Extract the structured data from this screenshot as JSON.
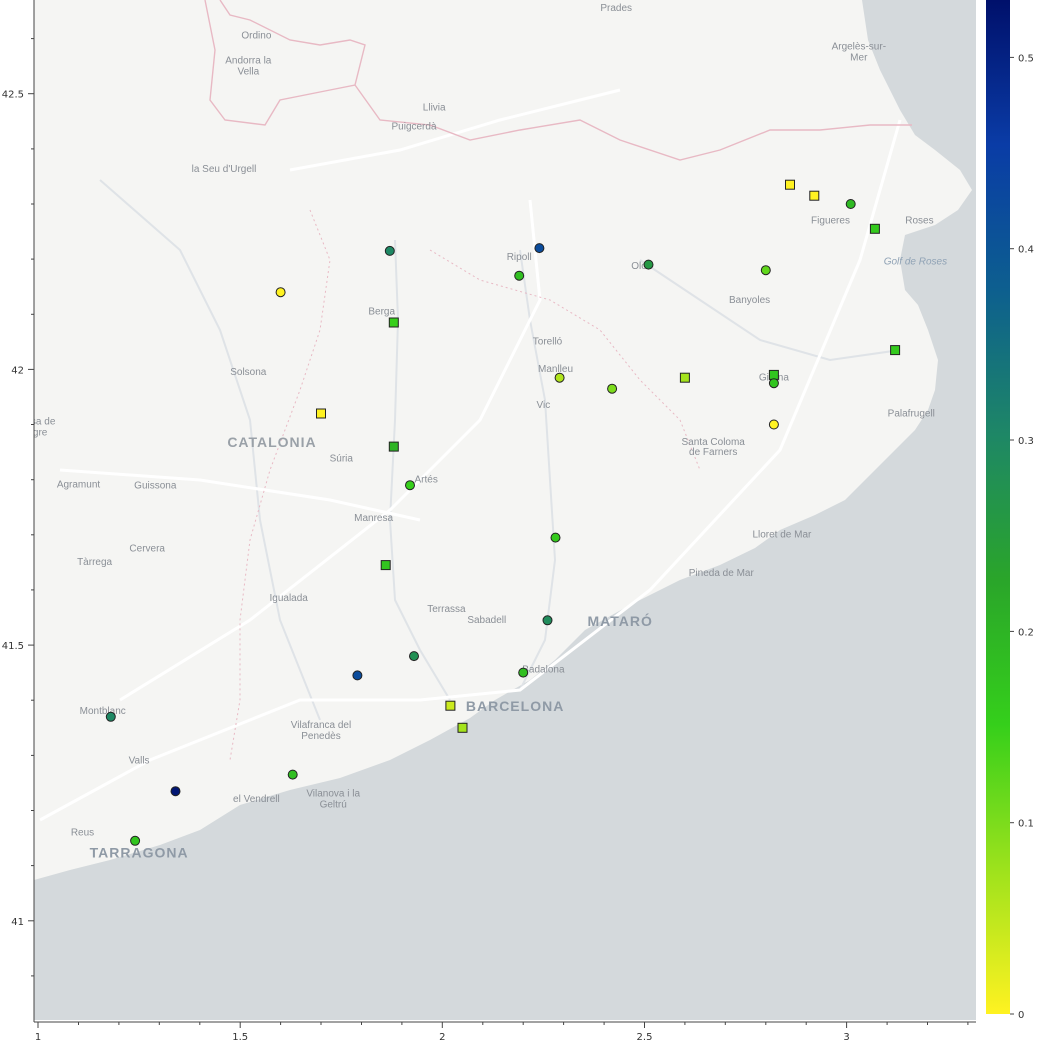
{
  "map": {
    "region_label": "CATALONIA",
    "colors": {
      "land": "#f5f5f3",
      "sea": "#d4d9dc",
      "road": "#ffffff",
      "border": "#e8b9c4",
      "river": "#dfe3e7"
    },
    "places": [
      {
        "text": "Prades",
        "lon": 2.43,
        "lat": 42.65
      },
      {
        "text": "Ordino",
        "lon": 1.54,
        "lat": 42.6
      },
      {
        "text": "Andorra la",
        "lon": 1.52,
        "lat": 42.555
      },
      {
        "text": "Vella",
        "lon": 1.52,
        "lat": 42.535
      },
      {
        "text": "Argelès-sur-",
        "lon": 3.03,
        "lat": 42.58
      },
      {
        "text": "Mer",
        "lon": 3.03,
        "lat": 42.56
      },
      {
        "text": "Llivia",
        "lon": 1.98,
        "lat": 42.47
      },
      {
        "text": "Puigcerdà",
        "lon": 1.93,
        "lat": 42.435
      },
      {
        "text": "la Seu d'Urgell",
        "lon": 1.46,
        "lat": 42.358
      },
      {
        "text": "Figueres",
        "lon": 2.96,
        "lat": 42.265
      },
      {
        "text": "Roses",
        "lon": 3.18,
        "lat": 42.265
      },
      {
        "text": "Golf de Roses",
        "lon": 3.17,
        "lat": 42.19,
        "kind": "water"
      },
      {
        "text": "Ripoll",
        "lon": 2.19,
        "lat": 42.198
      },
      {
        "text": "Olot",
        "lon": 2.49,
        "lat": 42.182
      },
      {
        "text": "Banyoles",
        "lon": 2.76,
        "lat": 42.12
      },
      {
        "text": "Berga",
        "lon": 1.85,
        "lat": 42.1
      },
      {
        "text": "Torelló",
        "lon": 2.26,
        "lat": 42.045
      },
      {
        "text": "Manlleu",
        "lon": 2.28,
        "lat": 41.995
      },
      {
        "text": "Solsona",
        "lon": 1.52,
        "lat": 41.99
      },
      {
        "text": "Vic",
        "lon": 2.25,
        "lat": 41.93
      },
      {
        "text": "Girona",
        "lon": 2.82,
        "lat": 41.98
      },
      {
        "text": "Palafrugell",
        "lon": 3.16,
        "lat": 41.915
      },
      {
        "text": "Artesa de",
        "lon": 0.99,
        "lat": 41.9
      },
      {
        "text": "Segre",
        "lon": 0.99,
        "lat": 41.88
      },
      {
        "text": "Santa Coloma",
        "lon": 2.67,
        "lat": 41.863
      },
      {
        "text": "de Farners",
        "lon": 2.67,
        "lat": 41.845
      },
      {
        "text": "Súria",
        "lon": 1.75,
        "lat": 41.833
      },
      {
        "text": "Artés",
        "lon": 1.96,
        "lat": 41.795
      },
      {
        "text": "Agramunt",
        "lon": 1.1,
        "lat": 41.786
      },
      {
        "text": "Guissona",
        "lon": 1.29,
        "lat": 41.784
      },
      {
        "text": "Manresa",
        "lon": 1.83,
        "lat": 41.725
      },
      {
        "text": "Lloret de Mar",
        "lon": 2.84,
        "lat": 41.695
      },
      {
        "text": "Cervera",
        "lon": 1.27,
        "lat": 41.67
      },
      {
        "text": "Tàrrega",
        "lon": 1.14,
        "lat": 41.645
      },
      {
        "text": "Pineda de Mar",
        "lon": 2.69,
        "lat": 41.625
      },
      {
        "text": "Igualada",
        "lon": 1.62,
        "lat": 41.58
      },
      {
        "text": "Terrassa",
        "lon": 2.01,
        "lat": 41.56
      },
      {
        "text": "Sabadell",
        "lon": 2.11,
        "lat": 41.54
      },
      {
        "text": "MATARÓ",
        "lon": 2.44,
        "lat": 41.535,
        "kind": "major"
      },
      {
        "text": "Badalona",
        "lon": 2.25,
        "lat": 41.45
      },
      {
        "text": "BARCELONA",
        "lon": 2.18,
        "lat": 41.38,
        "kind": "major"
      },
      {
        "text": "Montblanc",
        "lon": 1.16,
        "lat": 41.375
      },
      {
        "text": "Vilafranca del",
        "lon": 1.7,
        "lat": 41.35
      },
      {
        "text": "Penedès",
        "lon": 1.7,
        "lat": 41.33
      },
      {
        "text": "Valls",
        "lon": 1.25,
        "lat": 41.285
      },
      {
        "text": "el Vendrell",
        "lon": 1.54,
        "lat": 41.215
      },
      {
        "text": "Vilanova i la",
        "lon": 1.73,
        "lat": 41.225
      },
      {
        "text": "Geltrú",
        "lon": 1.73,
        "lat": 41.205
      },
      {
        "text": "Reus",
        "lon": 1.11,
        "lat": 41.155
      },
      {
        "text": "TARRAGONA",
        "lon": 1.25,
        "lat": 41.115,
        "kind": "major"
      }
    ],
    "markers": [
      {
        "lon": 2.86,
        "lat": 42.335,
        "value": 0.0,
        "shape": "square"
      },
      {
        "lon": 2.92,
        "lat": 42.315,
        "value": 0.0,
        "shape": "square"
      },
      {
        "lon": 3.01,
        "lat": 42.3,
        "value": 0.19,
        "shape": "circle"
      },
      {
        "lon": 3.07,
        "lat": 42.255,
        "value": 0.16,
        "shape": "square"
      },
      {
        "lon": 1.87,
        "lat": 42.215,
        "value": 0.3,
        "shape": "circle"
      },
      {
        "lon": 2.24,
        "lat": 42.22,
        "value": 0.42,
        "shape": "circle"
      },
      {
        "lon": 2.19,
        "lat": 42.17,
        "value": 0.18,
        "shape": "circle"
      },
      {
        "lon": 2.51,
        "lat": 42.19,
        "value": 0.26,
        "shape": "circle"
      },
      {
        "lon": 2.8,
        "lat": 42.18,
        "value": 0.12,
        "shape": "circle"
      },
      {
        "lon": 1.6,
        "lat": 42.14,
        "value": 0.0,
        "shape": "circle"
      },
      {
        "lon": 1.88,
        "lat": 42.085,
        "value": 0.15,
        "shape": "square"
      },
      {
        "lon": 3.12,
        "lat": 42.035,
        "value": 0.16,
        "shape": "square"
      },
      {
        "lon": 2.82,
        "lat": 41.99,
        "value": 0.17,
        "shape": "square"
      },
      {
        "lon": 2.82,
        "lat": 41.975,
        "value": 0.17,
        "shape": "circle"
      },
      {
        "lon": 2.29,
        "lat": 41.985,
        "value": 0.06,
        "shape": "circle"
      },
      {
        "lon": 2.42,
        "lat": 41.965,
        "value": 0.1,
        "shape": "circle"
      },
      {
        "lon": 2.6,
        "lat": 41.985,
        "value": 0.07,
        "shape": "square"
      },
      {
        "lon": 1.7,
        "lat": 41.92,
        "value": 0.0,
        "shape": "square"
      },
      {
        "lon": 2.82,
        "lat": 41.9,
        "value": 0.0,
        "shape": "circle"
      },
      {
        "lon": 1.88,
        "lat": 41.86,
        "value": 0.2,
        "shape": "square"
      },
      {
        "lon": 1.92,
        "lat": 41.79,
        "value": 0.15,
        "shape": "circle"
      },
      {
        "lon": 2.28,
        "lat": 41.695,
        "value": 0.16,
        "shape": "circle"
      },
      {
        "lon": 1.86,
        "lat": 41.645,
        "value": 0.17,
        "shape": "square"
      },
      {
        "lon": 2.26,
        "lat": 41.545,
        "value": 0.29,
        "shape": "circle"
      },
      {
        "lon": 1.93,
        "lat": 41.48,
        "value": 0.28,
        "shape": "circle"
      },
      {
        "lon": 1.79,
        "lat": 41.445,
        "value": 0.42,
        "shape": "circle"
      },
      {
        "lon": 2.2,
        "lat": 41.45,
        "value": 0.18,
        "shape": "circle"
      },
      {
        "lon": 2.02,
        "lat": 41.39,
        "value": 0.04,
        "shape": "square"
      },
      {
        "lon": 2.05,
        "lat": 41.35,
        "value": 0.07,
        "shape": "square"
      },
      {
        "lon": 1.18,
        "lat": 41.37,
        "value": 0.3,
        "shape": "circle"
      },
      {
        "lon": 1.63,
        "lat": 41.265,
        "value": 0.18,
        "shape": "circle"
      },
      {
        "lon": 1.34,
        "lat": 41.235,
        "value": 0.52,
        "shape": "circle"
      },
      {
        "lon": 1.24,
        "lat": 41.145,
        "value": 0.17,
        "shape": "circle"
      }
    ]
  },
  "axes": {
    "x_ticks": [
      "1",
      "1.5",
      "2",
      "2.5",
      "3"
    ],
    "x_tick_values": [
      1,
      1.5,
      2,
      2.5,
      3
    ],
    "y_ticks": [
      "41",
      "41.5",
      "42",
      "42.5"
    ],
    "y_tick_values": [
      41,
      41.5,
      42,
      42.5
    ],
    "xlim": [
      0.99,
      3.32
    ],
    "ylim": [
      40.82,
      42.67
    ]
  },
  "colorbar": {
    "ticks": [
      "0",
      "0.1",
      "0.2",
      "0.3",
      "0.4",
      "0.5"
    ],
    "tick_values": [
      0,
      0.1,
      0.2,
      0.3,
      0.4,
      0.5
    ],
    "range": [
      0,
      0.53
    ],
    "stops": [
      "#fff221",
      "#9de21c",
      "#35cf1b",
      "#2aa52a",
      "#1e8766",
      "#0d5f8f",
      "#0a3ca6",
      "#00106b"
    ]
  }
}
